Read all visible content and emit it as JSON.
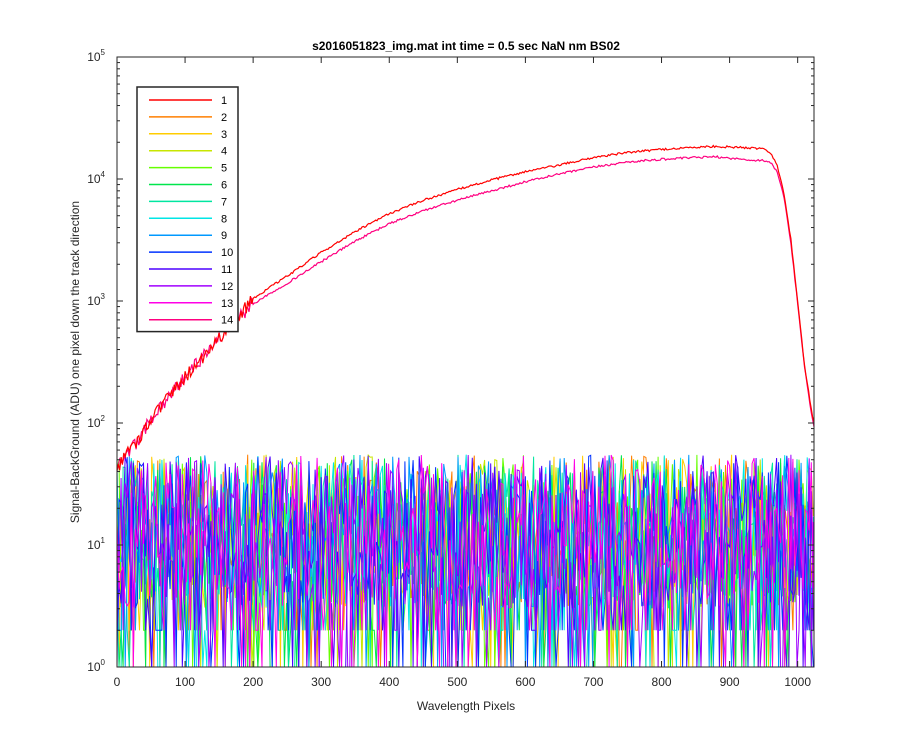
{
  "chart_data": {
    "type": "line",
    "title": "s2016051823_img.mat int time = 0.5 sec  NaN nm BS02",
    "xlabel": "Wavelength Pixels",
    "ylabel": "Signal-BackGround (ADU) one pixel down the track direction",
    "xlim": [
      0,
      1024
    ],
    "ylim": [
      1,
      100000
    ],
    "yscale": "log",
    "x_ticks": [
      0,
      100,
      200,
      300,
      400,
      500,
      600,
      700,
      800,
      900,
      1000
    ],
    "y_ticks": [
      1,
      10,
      100,
      1000,
      10000,
      100000
    ],
    "y_tick_mantissa": "10",
    "y_tick_exponents": [
      "0",
      "1",
      "2",
      "3",
      "4",
      "5"
    ],
    "grid": false,
    "legend_position": "top-left",
    "signal_profile": {
      "x": [
        0,
        10,
        25,
        50,
        100,
        150,
        200,
        250,
        300,
        350,
        400,
        450,
        500,
        550,
        600,
        650,
        700,
        750,
        800,
        850,
        880,
        900,
        930,
        950,
        960,
        970,
        980,
        990,
        1000,
        1010,
        1020,
        1024
      ],
      "series_1": [
        40,
        55,
        65,
        110,
        240,
        500,
        1050,
        1600,
        2500,
        3700,
        5200,
        6700,
        8200,
        9800,
        11500,
        13000,
        15000,
        16500,
        17500,
        18200,
        18500,
        18300,
        18000,
        17800,
        16500,
        13000,
        7500,
        3200,
        1000,
        300,
        130,
        100
      ],
      "series_14": [
        40,
        55,
        65,
        110,
        240,
        500,
        950,
        1400,
        2100,
        3100,
        4300,
        5500,
        6700,
        8000,
        9500,
        11000,
        12500,
        13800,
        14500,
        15000,
        15200,
        14800,
        14300,
        14200,
        13700,
        11500,
        7000,
        3000,
        950,
        290,
        120,
        95
      ]
    },
    "series": [
      {
        "name": "1",
        "color": "#ff0000",
        "kind": "signal"
      },
      {
        "name": "2",
        "color": "#ff7f00",
        "kind": "noise"
      },
      {
        "name": "3",
        "color": "#ffcc00",
        "kind": "noise"
      },
      {
        "name": "4",
        "color": "#c8e600",
        "kind": "noise"
      },
      {
        "name": "5",
        "color": "#66ff00",
        "kind": "noise"
      },
      {
        "name": "6",
        "color": "#00e64c",
        "kind": "noise"
      },
      {
        "name": "7",
        "color": "#00e6a0",
        "kind": "noise"
      },
      {
        "name": "8",
        "color": "#00e6e6",
        "kind": "noise"
      },
      {
        "name": "9",
        "color": "#0099ff",
        "kind": "noise"
      },
      {
        "name": "10",
        "color": "#0033ff",
        "kind": "noise"
      },
      {
        "name": "11",
        "color": "#4d00ff",
        "kind": "noise"
      },
      {
        "name": "12",
        "color": "#a000ff",
        "kind": "noise"
      },
      {
        "name": "13",
        "color": "#ff00e6",
        "kind": "noise"
      },
      {
        "name": "14",
        "color": "#ff0080",
        "kind": "signal"
      }
    ],
    "noise_range": [
      1,
      55
    ]
  }
}
